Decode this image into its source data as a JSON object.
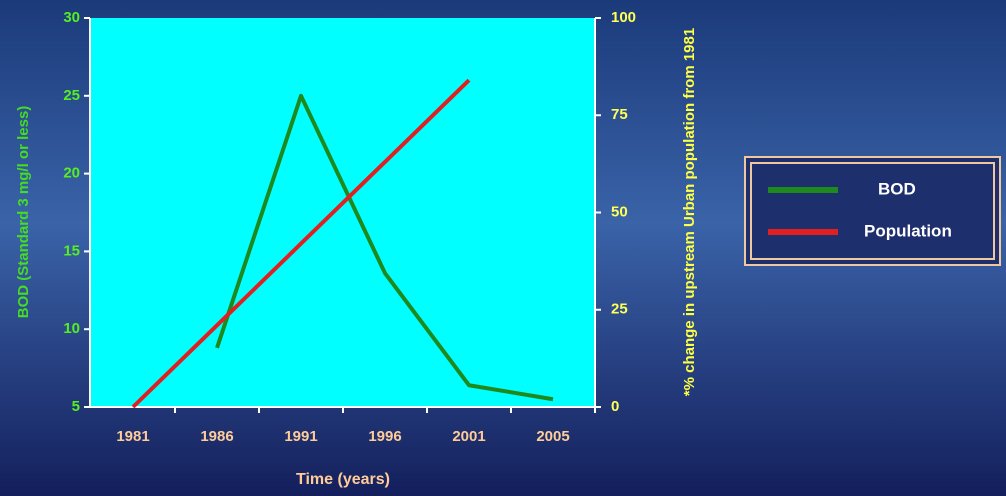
{
  "chart_data": {
    "type": "line",
    "categories": [
      "1981",
      "1986",
      "1991",
      "1996",
      "2001",
      "2005"
    ],
    "x_label": "Time (years)",
    "y_label": "BOD (Standard 3 mg/l or less)",
    "y2_label": "*% change in upstream Urban population from 1981",
    "ylim": [
      5,
      30
    ],
    "yticks": [
      5,
      10,
      15,
      20,
      25,
      30
    ],
    "y2lim": [
      0,
      100
    ],
    "y2ticks": [
      0,
      25,
      50,
      75,
      100
    ],
    "series": [
      {
        "name": "BOD",
        "color": "#1e8a1e",
        "values": [
          null,
          8.8,
          25,
          13.6,
          6.4,
          5.5
        ]
      },
      {
        "name": "Population",
        "color": "#e02020",
        "axis": "y2",
        "values": [
          0,
          21,
          42,
          63,
          84,
          null
        ]
      }
    ]
  }
}
